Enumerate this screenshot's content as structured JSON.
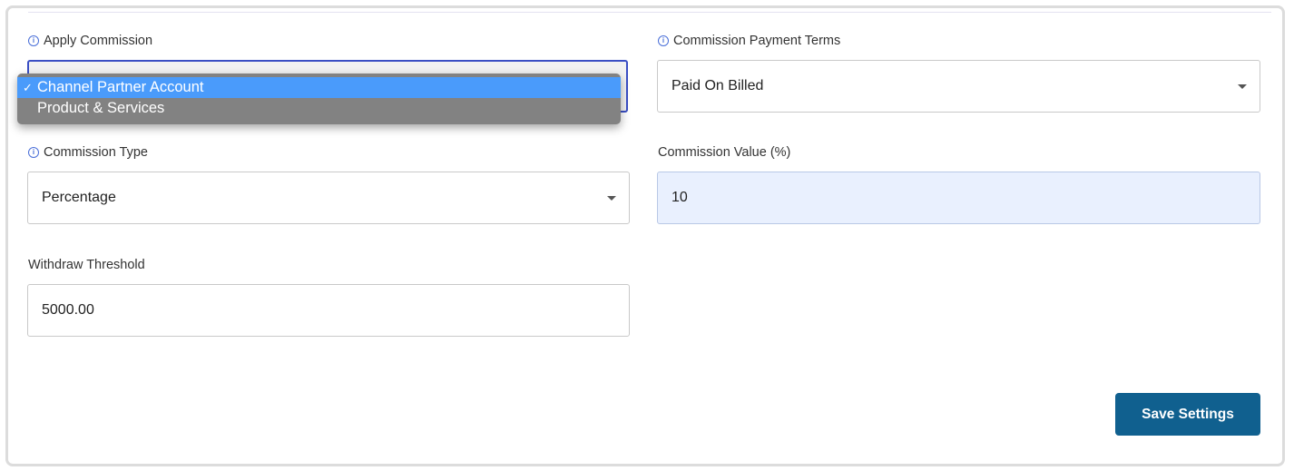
{
  "apply_commission": {
    "label": "Apply Commission",
    "options": [
      "Channel Partner Account",
      "Product & Services"
    ],
    "selected": "Channel Partner Account"
  },
  "payment_terms": {
    "label": "Commission Payment Terms",
    "value": "Paid On Billed"
  },
  "commission_type": {
    "label": "Commission Type",
    "value": "Percentage"
  },
  "commission_value": {
    "label": "Commission Value (%)",
    "value": "10"
  },
  "withdraw_threshold": {
    "label": "Withdraw Threshold",
    "value": "5000.00"
  },
  "save_label": "Save Settings",
  "colors": {
    "primary_button": "#10608f",
    "info_icon": "#4a6fd8",
    "selected_option": "#4a9bfb"
  }
}
